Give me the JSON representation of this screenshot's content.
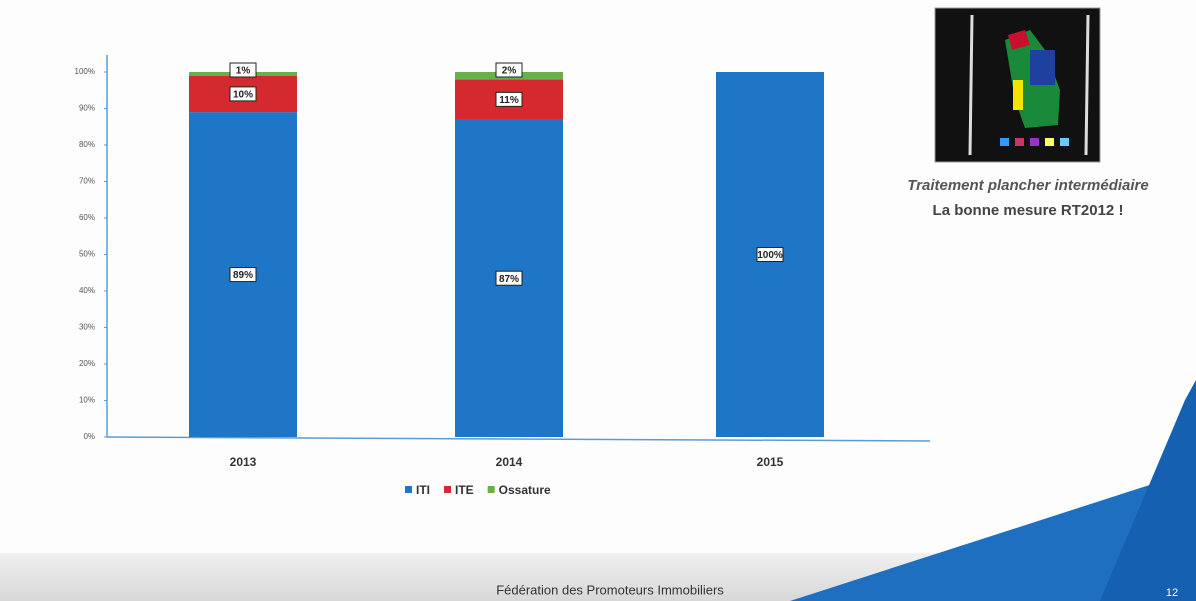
{
  "chart_data": {
    "type": "stacked-bar",
    "categories": [
      "2013",
      "2014",
      "2015"
    ],
    "series": [
      {
        "name": "ITI",
        "color": "#1f76c6",
        "values": [
          89,
          87,
          100
        ],
        "value_labels": [
          "89%",
          "87%",
          "100%"
        ]
      },
      {
        "name": "ITE",
        "color": "#d42a2f",
        "values": [
          10,
          11,
          0
        ],
        "value_labels": [
          "10%",
          "11%",
          null
        ]
      },
      {
        "name": "Ossature",
        "color": "#6aaf4a",
        "values": [
          1,
          2,
          0
        ],
        "value_labels": [
          "1%",
          "2%",
          null
        ]
      }
    ],
    "ylim": [
      0,
      100
    ],
    "yticks": [
      {
        "value": 0,
        "label": "0%"
      },
      {
        "value": 10,
        "label": "10%"
      },
      {
        "value": 20,
        "label": "20%"
      },
      {
        "value": 30,
        "label": "30%"
      },
      {
        "value": 40,
        "label": "40%"
      },
      {
        "value": 50,
        "label": "50%"
      },
      {
        "value": 60,
        "label": "60%"
      },
      {
        "value": 70,
        "label": "70%"
      },
      {
        "value": 80,
        "label": "80%"
      },
      {
        "value": 90,
        "label": "90%"
      },
      {
        "value": 100,
        "label": "100%"
      }
    ],
    "grid": false,
    "legend": "bottom"
  },
  "caption": {
    "line1": "Traitement plancher intermédiaire",
    "line2": "La bonne mesure RT2012 !"
  },
  "footer": {
    "organization": "Fédération des Promoteurs Immobiliers",
    "page": "12"
  }
}
